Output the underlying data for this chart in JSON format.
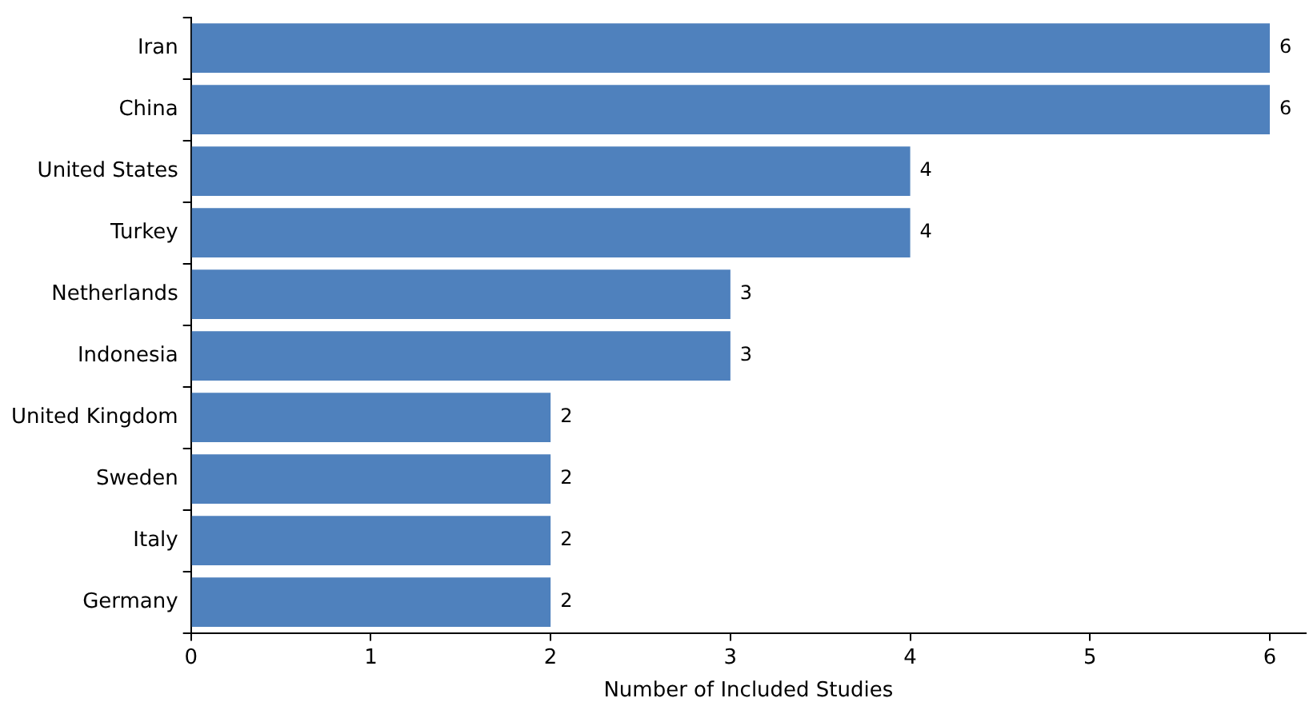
{
  "chart_data": {
    "type": "bar",
    "orientation": "horizontal",
    "xlabel": "Number of Included Studies",
    "categories": [
      "Iran",
      "China",
      "United States",
      "Turkey",
      "Netherlands",
      "Indonesia",
      "United Kingdom",
      "Sweden",
      "Italy",
      "Germany"
    ],
    "values": [
      6,
      6,
      4,
      4,
      3,
      3,
      2,
      2,
      2,
      2
    ],
    "color": "#4f81bd",
    "xlim": [
      0,
      6.2
    ],
    "xticks": [
      0,
      1,
      2,
      3,
      4,
      5,
      6
    ],
    "grid": false,
    "legend": false,
    "data_labels": true
  }
}
